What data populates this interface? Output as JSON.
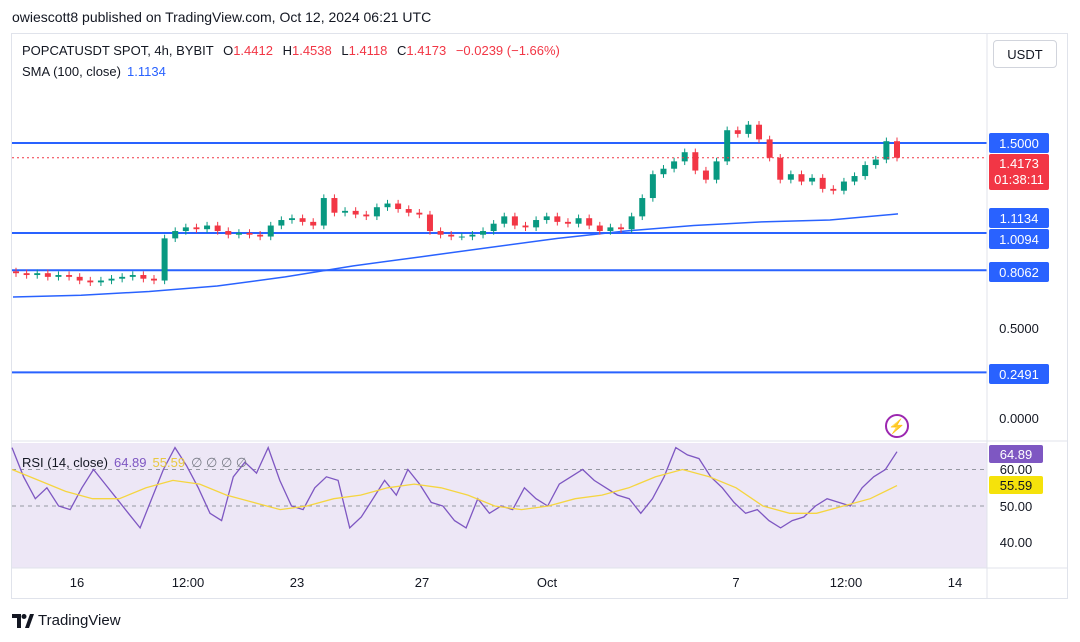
{
  "publisher": "owiescott8 published on TradingView.com, Oct 12, 2024 06:21 UTC",
  "legend": {
    "symbol": "POPCATUSDT SPOT, 4h, BYBIT",
    "o_label": "O",
    "o": "1.4412",
    "h_label": "H",
    "h": "1.4538",
    "l_label": "L",
    "l": "1.4118",
    "c_label": "C",
    "c": "1.4173",
    "change": "−0.0239 (−1.66%)",
    "sma_label": "SMA (100, close)",
    "sma_value": "1.1134",
    "rsi_label": "RSI (14, close)",
    "rsi_value": "64.89",
    "rsi_ma_value": "55.59",
    "rsi_extra": "∅ ∅ ∅ ∅"
  },
  "currency_button": "USDT",
  "price_axis": {
    "level_1_5": "1.5000",
    "current_price": "1.4173",
    "countdown": "01:38:11",
    "sma": "1.1134",
    "level_1_0094": "1.0094",
    "level_0_8062": "0.8062",
    "tick_0_5": "0.5000",
    "level_0_2491": "0.2491",
    "tick_0": "0.0000"
  },
  "rsi_axis": {
    "rsi": "64.89",
    "t60": "60.00",
    "ma": "55.59",
    "t50": "50.00",
    "t40": "40.00"
  },
  "x_axis": [
    "16",
    "12:00",
    "23",
    "27",
    "Oct",
    "7",
    "12:00",
    "14"
  ],
  "branding": "TradingView",
  "colors": {
    "up": "#089981",
    "down": "#f23645",
    "sma": "#2962ff",
    "level": "#2962ff",
    "rsi": "#7e57c2",
    "rsi_ma": "#f5d540",
    "rsi_band": "#ede7f6"
  },
  "chart_data": [
    {
      "type": "candlestick",
      "title": "POPCATUSDT SPOT, 4h, BYBIT",
      "ylim": [
        0.0,
        1.75
      ],
      "horizontal_levels": [
        1.5,
        1.0094,
        0.8062,
        0.2491
      ],
      "series": [
        {
          "name": "price",
          "close": [
            0.79,
            0.78,
            0.79,
            0.77,
            0.78,
            0.77,
            0.75,
            0.74,
            0.75,
            0.76,
            0.77,
            0.78,
            0.76,
            0.75,
            0.98,
            1.02,
            1.04,
            1.03,
            1.05,
            1.02,
            1.0,
            1.01,
            1.0,
            0.99,
            1.05,
            1.08,
            1.09,
            1.07,
            1.05,
            1.2,
            1.12,
            1.13,
            1.11,
            1.1,
            1.15,
            1.17,
            1.14,
            1.12,
            1.11,
            1.02,
            1.0,
            0.99,
            0.99,
            1.0,
            1.02,
            1.06,
            1.1,
            1.05,
            1.04,
            1.08,
            1.1,
            1.07,
            1.06,
            1.09,
            1.05,
            1.02,
            1.04,
            1.03,
            1.1,
            1.2,
            1.33,
            1.36,
            1.4,
            1.45,
            1.35,
            1.3,
            1.4,
            1.57,
            1.55,
            1.6,
            1.52,
            1.42,
            1.3,
            1.33,
            1.29,
            1.31,
            1.25,
            1.24,
            1.29,
            1.32,
            1.38,
            1.41,
            1.51,
            1.42
          ]
        },
        {
          "name": "SMA (100, close)",
          "values": [
            0.66,
            0.67,
            0.69,
            0.72,
            0.77,
            0.83,
            0.88,
            0.93,
            0.98,
            1.02,
            1.05,
            1.07,
            1.08,
            1.1134
          ]
        }
      ]
    },
    {
      "type": "line",
      "title": "RSI (14, close)",
      "ylim": [
        34,
        66
      ],
      "series": [
        {
          "name": "RSI",
          "values": [
            66,
            58,
            52,
            55,
            50,
            49,
            55,
            60,
            56,
            52,
            48,
            44,
            52,
            60,
            66,
            61,
            55,
            48,
            46,
            58,
            62,
            59,
            66,
            57,
            50,
            49,
            55,
            58,
            57,
            44,
            47,
            52,
            57,
            53,
            60,
            56,
            51,
            50,
            46,
            44,
            52,
            48,
            50,
            49,
            55,
            52,
            50,
            56,
            58,
            60,
            57,
            55,
            53,
            52,
            48,
            52,
            58,
            66,
            64,
            63,
            58,
            55,
            51,
            48,
            49,
            46,
            44,
            46,
            47,
            50,
            52,
            51,
            50,
            55,
            58,
            60,
            64.89
          ]
        },
        {
          "name": "RSI MA",
          "values": [
            60,
            57,
            54,
            52,
            52,
            55,
            57,
            56,
            53,
            51,
            49,
            50,
            52,
            53,
            55,
            56,
            55,
            53,
            50,
            49,
            50,
            52,
            53,
            55,
            58,
            60,
            58,
            55,
            50,
            48,
            48,
            50,
            52,
            55.59
          ]
        }
      ]
    }
  ]
}
